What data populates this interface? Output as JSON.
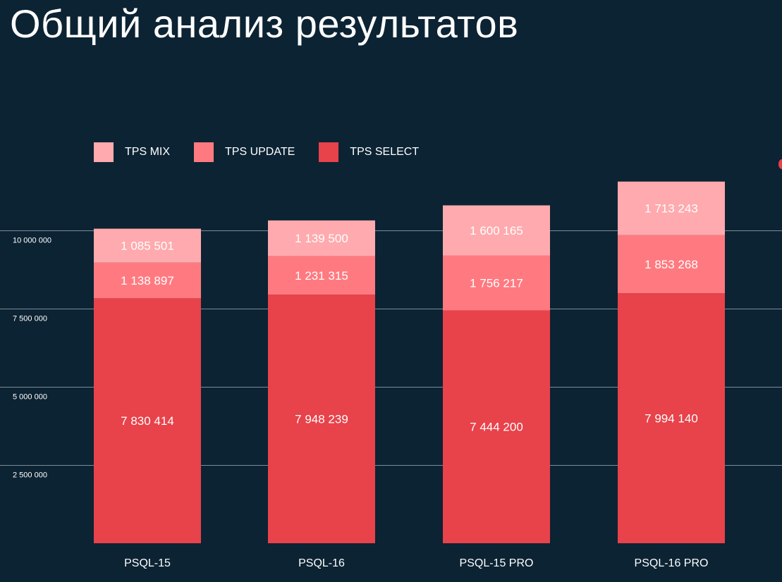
{
  "title": "Общий анализ результатов",
  "colors": {
    "background": "#0c2333",
    "tps_mix": "#ffaaae",
    "tps_update": "#ff7a80",
    "tps_select": "#e8424a",
    "grid": "#9aa7b0"
  },
  "chart_data": {
    "type": "bar",
    "stacked": true,
    "categories": [
      "PSQL-15",
      "PSQL-16",
      "PSQL-15 PRO",
      "PSQL-16 PRO"
    ],
    "series": [
      {
        "name": "TPS SELECT",
        "color": "#e8424a",
        "values": [
          7830414,
          7948239,
          7444200,
          7994140
        ],
        "labels": [
          "7 830 414",
          "7 948 239",
          "7 444 200",
          "7 994 140"
        ]
      },
      {
        "name": "TPS UPDATE",
        "color": "#ff7a80",
        "values": [
          1138897,
          1231315,
          1756217,
          1853268
        ],
        "labels": [
          "1 138 897",
          "1 231 315",
          "1 756 217",
          "1 853 268"
        ]
      },
      {
        "name": "TPS MIX",
        "color": "#ffaaae",
        "values": [
          1085501,
          1139500,
          1600165,
          1713243
        ],
        "labels": [
          "1 085 501",
          "1 139 500",
          "1 600 165",
          "1 713 243"
        ]
      }
    ],
    "legend_order": [
      "TPS MIX",
      "TPS UPDATE",
      "TPS SELECT"
    ],
    "y_ticks": [
      2500000,
      5000000,
      7500000,
      10000000
    ],
    "y_tick_labels": [
      "2 500 000",
      "5 000 000",
      "7 500 000",
      "10 000 000"
    ],
    "ylim": [
      0,
      12000000
    ],
    "grid": true,
    "legend_position": "top-left"
  }
}
